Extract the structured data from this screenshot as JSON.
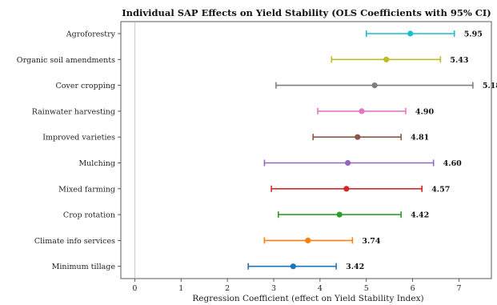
{
  "chart_data": {
    "type": "scatter",
    "subtype": "forest-plot-errorbars",
    "title": "Individual SAP Effects on Yield Stability (OLS Coefficients with 95% CI)",
    "xlabel": "Regression Coefficient (effect on Yield Stability Index)",
    "ylabel": "",
    "xlim": [
      -0.3,
      7.7
    ],
    "xticks": [
      0,
      1,
      2,
      3,
      4,
      5,
      6,
      7
    ],
    "reference_line_x": 0,
    "grid": false,
    "legend": "none",
    "points": [
      {
        "label": "Agroforestry",
        "value": 5.95,
        "value_label": "5.95",
        "ci": [
          5.0,
          6.9
        ],
        "color": "#17becf"
      },
      {
        "label": "Organic soil amendments",
        "value": 5.43,
        "value_label": "5.43",
        "ci": [
          4.25,
          6.6
        ],
        "color": "#bcbd22"
      },
      {
        "label": "Cover cropping",
        "value": 5.18,
        "value_label": "5.18",
        "ci": [
          3.05,
          7.3
        ],
        "color": "#7f7f7f"
      },
      {
        "label": "Rainwater harvesting",
        "value": 4.9,
        "value_label": "4.90",
        "ci": [
          3.95,
          5.85
        ],
        "color": "#e377c2"
      },
      {
        "label": "Improved varieties",
        "value": 4.81,
        "value_label": "4.81",
        "ci": [
          3.85,
          5.75
        ],
        "color": "#8c564b"
      },
      {
        "label": "Mulching",
        "value": 4.6,
        "value_label": "4.60",
        "ci": [
          2.8,
          6.45
        ],
        "color": "#9467bd"
      },
      {
        "label": "Mixed farming",
        "value": 4.57,
        "value_label": "4.57",
        "ci": [
          2.95,
          6.2
        ],
        "color": "#d62728"
      },
      {
        "label": "Crop rotation",
        "value": 4.42,
        "value_label": "4.42",
        "ci": [
          3.1,
          5.75
        ],
        "color": "#2ca02c"
      },
      {
        "label": "Climate info services",
        "value": 3.74,
        "value_label": "3.74",
        "ci": [
          2.8,
          4.7
        ],
        "color": "#ff7f0e"
      },
      {
        "label": "Minimum tillage",
        "value": 3.42,
        "value_label": "3.42",
        "ci": [
          2.45,
          4.35
        ],
        "color": "#1f77b4"
      }
    ]
  }
}
